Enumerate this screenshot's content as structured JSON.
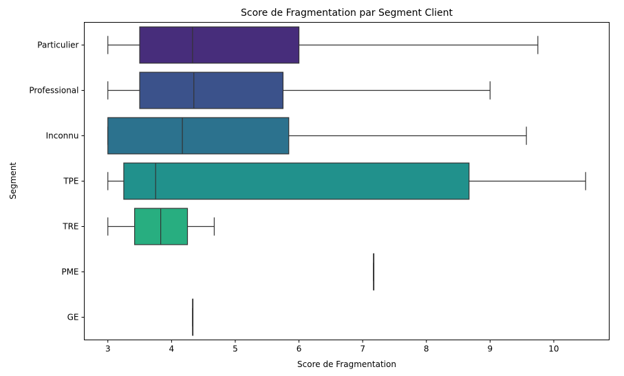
{
  "chart_data": {
    "type": "boxplot",
    "orientation": "horizontal",
    "title": "Score de Fragmentation par Segment Client",
    "xlabel": "Score de Fragmentation",
    "ylabel": "Segment",
    "xlim": [
      2.63,
      10.87
    ],
    "xticks": [
      3,
      4,
      5,
      6,
      7,
      8,
      9,
      10
    ],
    "grid": false,
    "categories": [
      "Particulier",
      "Professional",
      "Inconnu",
      "TPE",
      "TRE",
      "PME",
      "GE"
    ],
    "boxes": [
      {
        "category": "Particulier",
        "whisker_low": 3.0,
        "q1": 3.5,
        "median": 4.33,
        "q3": 6.0,
        "whisker_high": 9.75,
        "color": "#472d7b"
      },
      {
        "category": "Professional",
        "whisker_low": 3.0,
        "q1": 3.5,
        "median": 4.35,
        "q3": 5.75,
        "whisker_high": 9.0,
        "color": "#3b528b"
      },
      {
        "category": "Inconnu",
        "whisker_low": 3.0,
        "q1": 3.0,
        "median": 4.17,
        "q3": 5.84,
        "whisker_high": 9.57,
        "color": "#2c728e"
      },
      {
        "category": "TPE",
        "whisker_low": 3.0,
        "q1": 3.25,
        "median": 3.75,
        "q3": 8.67,
        "whisker_high": 10.5,
        "color": "#21918c"
      },
      {
        "category": "TRE",
        "whisker_low": 3.0,
        "q1": 3.42,
        "median": 3.83,
        "q3": 4.25,
        "whisker_high": 4.67,
        "color": "#28ae80"
      },
      {
        "category": "PME",
        "whisker_low": 7.17,
        "q1": 7.17,
        "median": 7.17,
        "q3": 7.17,
        "whisker_high": 7.17,
        "color": "#5ec962"
      },
      {
        "category": "GE",
        "whisker_low": 4.33,
        "q1": 4.33,
        "median": 4.33,
        "q3": 4.33,
        "whisker_high": 4.33,
        "color": "#addc30"
      }
    ]
  }
}
